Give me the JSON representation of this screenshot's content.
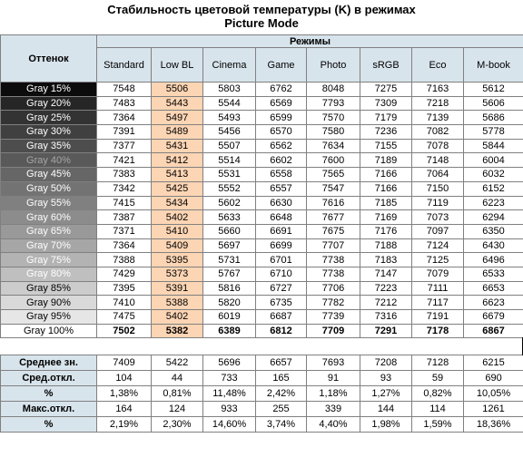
{
  "title_line1": "Стабильность цветовой температуры (K) в режимах",
  "title_line2": "Picture Mode",
  "col_group_label": "Режимы",
  "row_header_label": "Оттенок",
  "modes": [
    "Standard",
    "Low BL",
    "Cinema",
    "Game",
    "Photo",
    "sRGB",
    "Eco",
    "M-book"
  ],
  "gray_rows": [
    {
      "label": "Gray 15%",
      "bg": "#0c0c0c",
      "fg": "#ffffff",
      "values": [
        "7548",
        "5506",
        "5803",
        "6762",
        "8048",
        "7275",
        "7163",
        "5612"
      ]
    },
    {
      "label": "Gray 20%",
      "bg": "#262626",
      "fg": "#ffffff",
      "values": [
        "7483",
        "5443",
        "5544",
        "6569",
        "7793",
        "7309",
        "7218",
        "5606"
      ]
    },
    {
      "label": "Gray 25%",
      "bg": "#333333",
      "fg": "#ffffff",
      "values": [
        "7364",
        "5497",
        "5493",
        "6599",
        "7570",
        "7179",
        "7139",
        "5686"
      ]
    },
    {
      "label": "Gray 30%",
      "bg": "#404040",
      "fg": "#ffffff",
      "values": [
        "7391",
        "5489",
        "5456",
        "6570",
        "7580",
        "7236",
        "7082",
        "5778"
      ]
    },
    {
      "label": "Gray 35%",
      "bg": "#4d4d4d",
      "fg": "#ffffff",
      "values": [
        "7377",
        "5431",
        "5507",
        "6562",
        "7634",
        "7155",
        "7078",
        "5844"
      ]
    },
    {
      "label": "Gray 40%",
      "bg": "#595959",
      "fg": "#a6a6a6",
      "values": [
        "7421",
        "5412",
        "5514",
        "6602",
        "7600",
        "7189",
        "7148",
        "6004"
      ]
    },
    {
      "label": "Gray 45%",
      "bg": "#666666",
      "fg": "#ffffff",
      "values": [
        "7383",
        "5413",
        "5531",
        "6558",
        "7565",
        "7166",
        "7064",
        "6032"
      ]
    },
    {
      "label": "Gray 50%",
      "bg": "#737373",
      "fg": "#ffffff",
      "values": [
        "7342",
        "5425",
        "5552",
        "6557",
        "7547",
        "7166",
        "7150",
        "6152"
      ]
    },
    {
      "label": "Gray 55%",
      "bg": "#808080",
      "fg": "#ffffff",
      "values": [
        "7415",
        "5434",
        "5602",
        "6630",
        "7616",
        "7185",
        "7119",
        "6223"
      ]
    },
    {
      "label": "Gray 60%",
      "bg": "#8c8c8c",
      "fg": "#ffffff",
      "values": [
        "7387",
        "5402",
        "5633",
        "6648",
        "7677",
        "7169",
        "7073",
        "6294"
      ]
    },
    {
      "label": "Gray 65%",
      "bg": "#999999",
      "fg": "#ffffff",
      "values": [
        "7371",
        "5410",
        "5660",
        "6691",
        "7675",
        "7176",
        "7097",
        "6350"
      ]
    },
    {
      "label": "Gray 70%",
      "bg": "#a6a6a6",
      "fg": "#ffffff",
      "values": [
        "7364",
        "5409",
        "5697",
        "6699",
        "7707",
        "7188",
        "7124",
        "6430"
      ]
    },
    {
      "label": "Gray 75%",
      "bg": "#b3b3b3",
      "fg": "#ffffff",
      "values": [
        "7388",
        "5395",
        "5731",
        "6701",
        "7738",
        "7183",
        "7125",
        "6496"
      ]
    },
    {
      "label": "Gray 80%",
      "bg": "#bfbfbf",
      "fg": "#ffffff",
      "values": [
        "7429",
        "5373",
        "5767",
        "6710",
        "7738",
        "7147",
        "7079",
        "6533"
      ]
    },
    {
      "label": "Gray 85%",
      "bg": "#cccccc",
      "fg": "#000000",
      "values": [
        "7395",
        "5391",
        "5816",
        "6727",
        "7706",
        "7223",
        "7111",
        "6653"
      ]
    },
    {
      "label": "Gray 90%",
      "bg": "#d9d9d9",
      "fg": "#000000",
      "values": [
        "7410",
        "5388",
        "5820",
        "6735",
        "7782",
        "7212",
        "7117",
        "6623"
      ]
    },
    {
      "label": "Gray 95%",
      "bg": "#e6e6e6",
      "fg": "#000000",
      "values": [
        "7475",
        "5402",
        "6019",
        "6687",
        "7739",
        "7316",
        "7191",
        "6679"
      ]
    },
    {
      "label": "Gray 100%",
      "bg": "#ffffff",
      "fg": "#000000",
      "bold": true,
      "values": [
        "7502",
        "5382",
        "6389",
        "6812",
        "7709",
        "7291",
        "7178",
        "6867"
      ]
    }
  ],
  "summary_rows": [
    {
      "label": "Среднее зн.",
      "values": [
        "7409",
        "5422",
        "5696",
        "6657",
        "7693",
        "7208",
        "7128",
        "6215"
      ]
    },
    {
      "label": "Сред.откл.",
      "values": [
        "104",
        "44",
        "733",
        "165",
        "91",
        "93",
        "59",
        "690"
      ]
    },
    {
      "label": "%",
      "values": [
        "1,38%",
        "0,81%",
        "11,48%",
        "2,42%",
        "1,18%",
        "1,27%",
        "0,82%",
        "10,05%"
      ]
    },
    {
      "label": "Макс.откл.",
      "values": [
        "164",
        "124",
        "933",
        "255",
        "339",
        "144",
        "114",
        "1261"
      ]
    },
    {
      "label": "%",
      "values": [
        "2,19%",
        "2,30%",
        "14,60%",
        "3,74%",
        "4,40%",
        "1,98%",
        "1,59%",
        "18,36%"
      ]
    }
  ],
  "chart_data": {
    "type": "table",
    "title": "Стабильность цветовой температуры (K) в режимах Picture Mode",
    "columns": [
      "Standard",
      "Low BL",
      "Cinema",
      "Game",
      "Photo",
      "sRGB",
      "Eco",
      "M-book"
    ]
  }
}
